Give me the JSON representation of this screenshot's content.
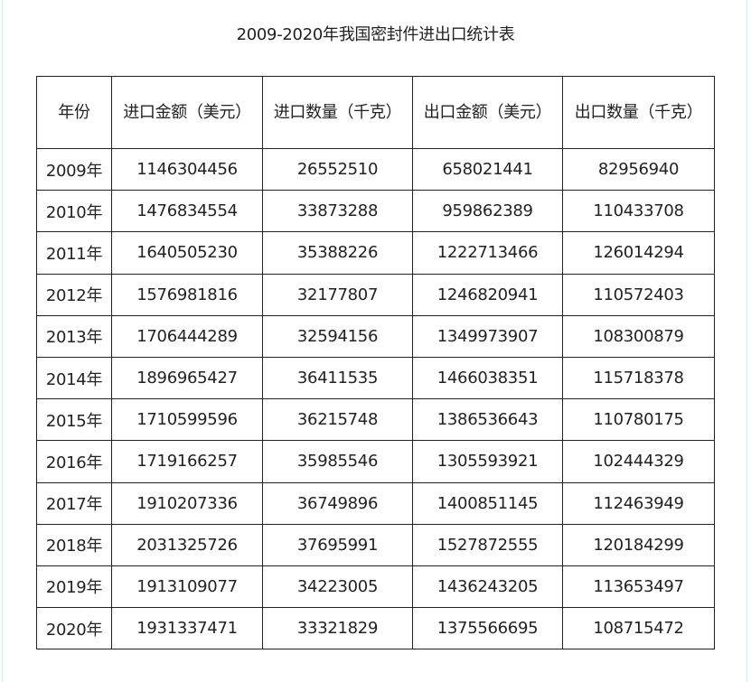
{
  "title": "2009-2020年我国密封件进出口统计表",
  "headers": [
    "年份",
    "进口金额（美元）",
    "进口数量（千克）",
    "出口金额（美元）",
    "出口数量（千克）"
  ],
  "rows": [
    [
      "2009年",
      "1146304456",
      "26552510",
      "658021441",
      "82956940"
    ],
    [
      "2010年",
      "1476834554",
      "33873288",
      "959862389",
      "110433708"
    ],
    [
      "2011年",
      "1640505230",
      "35388226",
      "1222713466",
      "126014294"
    ],
    [
      "2012年",
      "1576981816",
      "32177807",
      "1246820941",
      "110572403"
    ],
    [
      "2013年",
      "1706444289",
      "32594156",
      "1349973907",
      "108300879"
    ],
    [
      "2014年",
      "1896965427",
      "36411535",
      "1466038351",
      "115718378"
    ],
    [
      "2015年",
      "1710599596",
      "36215748",
      "1386536643",
      "110780175"
    ],
    [
      "2016年",
      "1719166257",
      "35985546",
      "1305593921",
      "102444329"
    ],
    [
      "2017年",
      "1910207336",
      "36749896",
      "1400851145",
      "112463949"
    ],
    [
      "2018年",
      "2031325726",
      "37695991",
      "1527872555",
      "120184299"
    ],
    [
      "2019年",
      "1913109077",
      "34223005",
      "1436243205",
      "113653497"
    ],
    [
      "2020年",
      "1931337471",
      "33321829",
      "1375566695",
      "108715472"
    ]
  ]
}
